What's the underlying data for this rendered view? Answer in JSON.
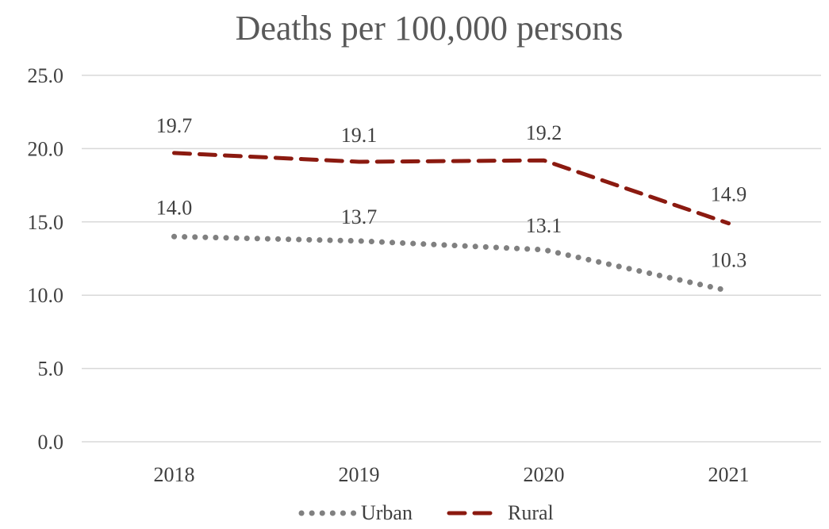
{
  "chart_data": {
    "type": "line",
    "title": "Deaths per 100,000 persons",
    "xlabel": "",
    "ylabel": "",
    "categories": [
      "2018",
      "2019",
      "2020",
      "2021"
    ],
    "ylim": [
      0,
      25
    ],
    "yticks": [
      "0.0",
      "5.0",
      "10.0",
      "15.0",
      "20.0",
      "25.0"
    ],
    "grid": true,
    "legend_position": "bottom",
    "series": [
      {
        "name": "Urban",
        "values": [
          14.0,
          13.7,
          13.1,
          10.3
        ],
        "labels": [
          "14.0",
          "13.7",
          "13.1",
          "10.3"
        ],
        "color": "#808080",
        "style": "dotted"
      },
      {
        "name": "Rural",
        "values": [
          19.7,
          19.1,
          19.2,
          14.9
        ],
        "labels": [
          "19.7",
          "19.1",
          "19.2",
          "14.9"
        ],
        "color": "#8b1a10",
        "style": "dashed"
      }
    ]
  }
}
